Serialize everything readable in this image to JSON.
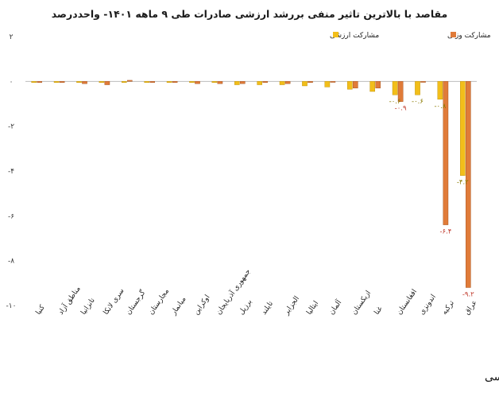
{
  "chart_data": {
    "type": "bar",
    "title": "مقاصد با بالاترین تاثیر منفی بررشد ارزشی صادرات طی ۹ ماهه ۱۴۰۱- واحددرصد",
    "categories": [
      "کنیا",
      "مناطق آزاد",
      "تانزانیا",
      "سری لانکا",
      "گرجستان",
      "مجارستان",
      "میانمار",
      "اوکراین",
      "جمهوری آذربایجان",
      "برزیل",
      "تایلند",
      "الجزایر",
      "ایتالیا",
      "آلمان",
      "ازبکستان",
      "غنا",
      "افغانستان",
      "اندونزی",
      "ترکیه",
      "عراق"
    ],
    "series": [
      {
        "name": "مشارکت ارزشی",
        "color": "#F2BE1A",
        "values": [
          -0.05,
          -0.05,
          -0.05,
          -0.05,
          -0.05,
          -0.05,
          -0.05,
          -0.05,
          -0.05,
          -0.15,
          -0.15,
          -0.15,
          -0.2,
          -0.25,
          -0.35,
          -0.45,
          -0.6,
          -0.6,
          -0.8,
          -4.2
        ],
        "data_labels": [
          "",
          "",
          "",
          "",
          "",
          "",
          "",
          "",
          "",
          "",
          "",
          "",
          "",
          "",
          "",
          "",
          "-۰.۶",
          "-۰.۶",
          "-۰.۸",
          "-۴.۲"
        ]
      },
      {
        "name": "مشارکت وزنی",
        "color": "#E07B39",
        "values": [
          -0.05,
          -0.05,
          -0.1,
          -0.15,
          0.05,
          -0.05,
          -0.05,
          -0.1,
          -0.1,
          -0.1,
          -0.05,
          -0.1,
          -0.05,
          0,
          -0.3,
          -0.3,
          -0.9,
          0,
          -6.4,
          -9.2
        ],
        "data_labels": [
          "",
          "",
          "",
          "",
          "",
          "",
          "",
          "",
          "",
          "",
          "",
          "",
          "",
          "",
          "",
          "",
          "-۰.۹",
          "",
          "-۶.۴",
          "-۹.۲"
        ]
      }
    ],
    "yticks": [
      {
        "value": 2,
        "label": "۲"
      },
      {
        "value": 0,
        "label": "۰"
      },
      {
        "value": -2,
        "label": "-۲"
      },
      {
        "value": -4,
        "label": "-۴"
      },
      {
        "value": -6,
        "label": "-۶"
      },
      {
        "value": -8,
        "label": "-۸"
      },
      {
        "value": -10,
        "label": "-۱۰"
      }
    ],
    "ylim": [
      -10,
      2
    ],
    "grid": false,
    "legend_position": "top-right",
    "source": "منبع داده‌ها: گمرک ایران و محاسبات کارشناسی"
  }
}
